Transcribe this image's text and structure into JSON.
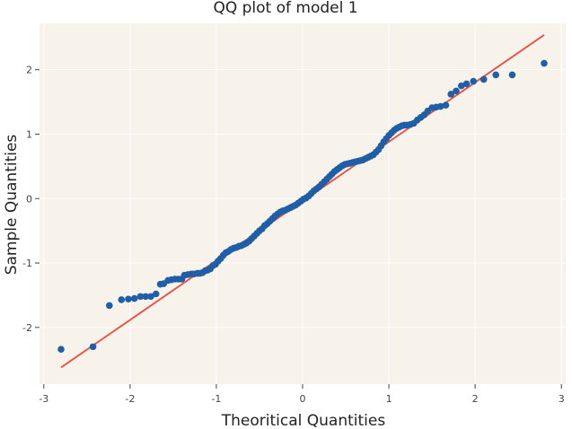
{
  "chart_data": {
    "type": "scatter",
    "title": "QQ plot of model 1",
    "xlabel": "Theoritical Quantities",
    "ylabel": "Sample Quantities",
    "xlim": [
      -3.05,
      3.05
    ],
    "ylim": [
      -2.88,
      2.72
    ],
    "x_ticks": [
      -3,
      -2,
      -1,
      0,
      1,
      2,
      3
    ],
    "y_ticks": [
      -2,
      -1,
      0,
      1,
      2
    ],
    "grid": true,
    "legend": "none",
    "colors": {
      "plot_background": "#f7f2ea",
      "grid": "#ffffff",
      "points": "#1f5fa8",
      "line": "#ef4a40"
    },
    "series": [
      {
        "type": "scatter",
        "points": [
          [
            -2.8,
            -2.34
          ],
          [
            -2.43,
            -2.3
          ],
          [
            -2.24,
            -1.66
          ],
          [
            -2.1,
            -1.57
          ],
          [
            -2.02,
            -1.56
          ],
          [
            -1.95,
            -1.55
          ],
          [
            -1.88,
            -1.52
          ],
          [
            -1.82,
            -1.52
          ],
          [
            -1.76,
            -1.52
          ],
          [
            -1.7,
            -1.48
          ],
          [
            -1.65,
            -1.33
          ],
          [
            -1.61,
            -1.32
          ],
          [
            -1.56,
            -1.27
          ],
          [
            -1.52,
            -1.26
          ],
          [
            -1.48,
            -1.25
          ],
          [
            -1.44,
            -1.25
          ],
          [
            -1.4,
            -1.25
          ],
          [
            -1.37,
            -1.19
          ],
          [
            -1.33,
            -1.18
          ],
          [
            -1.29,
            -1.17
          ],
          [
            -1.26,
            -1.17
          ],
          [
            -1.22,
            -1.16
          ],
          [
            -1.19,
            -1.16
          ],
          [
            -1.16,
            -1.15
          ],
          [
            -1.13,
            -1.12
          ],
          [
            -1.1,
            -1.11
          ],
          [
            -1.07,
            -1.09
          ],
          [
            -1.04,
            -1.04
          ],
          [
            -1.01,
            -1.02
          ],
          [
            -0.98,
            -0.97
          ],
          [
            -0.95,
            -0.93
          ],
          [
            -0.92,
            -0.88
          ],
          [
            -0.89,
            -0.84
          ],
          [
            -0.86,
            -0.82
          ],
          [
            -0.83,
            -0.79
          ],
          [
            -0.8,
            -0.77
          ],
          [
            -0.77,
            -0.76
          ],
          [
            -0.74,
            -0.74
          ],
          [
            -0.71,
            -0.73
          ],
          [
            -0.68,
            -0.71
          ],
          [
            -0.65,
            -0.69
          ],
          [
            -0.62,
            -0.66
          ],
          [
            -0.59,
            -0.62
          ],
          [
            -0.56,
            -0.58
          ],
          [
            -0.53,
            -0.54
          ],
          [
            -0.5,
            -0.5
          ],
          [
            -0.47,
            -0.47
          ],
          [
            -0.44,
            -0.42
          ],
          [
            -0.41,
            -0.39
          ],
          [
            -0.38,
            -0.35
          ],
          [
            -0.35,
            -0.31
          ],
          [
            -0.32,
            -0.27
          ],
          [
            -0.29,
            -0.24
          ],
          [
            -0.26,
            -0.21
          ],
          [
            -0.23,
            -0.19
          ],
          [
            -0.2,
            -0.18
          ],
          [
            -0.17,
            -0.16
          ],
          [
            -0.14,
            -0.14
          ],
          [
            -0.11,
            -0.12
          ],
          [
            -0.08,
            -0.1
          ],
          [
            -0.05,
            -0.07
          ],
          [
            -0.02,
            -0.04
          ],
          [
            0.01,
            -0.01
          ],
          [
            0.04,
            0.01
          ],
          [
            0.07,
            0.04
          ],
          [
            0.1,
            0.08
          ],
          [
            0.13,
            0.12
          ],
          [
            0.16,
            0.15
          ],
          [
            0.19,
            0.18
          ],
          [
            0.22,
            0.22
          ],
          [
            0.25,
            0.26
          ],
          [
            0.28,
            0.3
          ],
          [
            0.31,
            0.34
          ],
          [
            0.34,
            0.38
          ],
          [
            0.37,
            0.42
          ],
          [
            0.4,
            0.45
          ],
          [
            0.43,
            0.48
          ],
          [
            0.46,
            0.51
          ],
          [
            0.49,
            0.53
          ],
          [
            0.52,
            0.54
          ],
          [
            0.55,
            0.55
          ],
          [
            0.58,
            0.56
          ],
          [
            0.61,
            0.57
          ],
          [
            0.64,
            0.58
          ],
          [
            0.67,
            0.59
          ],
          [
            0.7,
            0.6
          ],
          [
            0.73,
            0.62
          ],
          [
            0.76,
            0.64
          ],
          [
            0.79,
            0.66
          ],
          [
            0.82,
            0.68
          ],
          [
            0.85,
            0.72
          ],
          [
            0.88,
            0.76
          ],
          [
            0.91,
            0.82
          ],
          [
            0.94,
            0.88
          ],
          [
            0.97,
            0.93
          ],
          [
            1.0,
            0.98
          ],
          [
            1.03,
            1.02
          ],
          [
            1.06,
            1.06
          ],
          [
            1.09,
            1.09
          ],
          [
            1.12,
            1.11
          ],
          [
            1.15,
            1.13
          ],
          [
            1.18,
            1.14
          ],
          [
            1.21,
            1.14
          ],
          [
            1.25,
            1.15
          ],
          [
            1.29,
            1.17
          ],
          [
            1.33,
            1.22
          ],
          [
            1.37,
            1.26
          ],
          [
            1.41,
            1.3
          ],
          [
            1.45,
            1.36
          ],
          [
            1.5,
            1.41
          ],
          [
            1.55,
            1.42
          ],
          [
            1.6,
            1.43
          ],
          [
            1.66,
            1.45
          ],
          [
            1.72,
            1.62
          ],
          [
            1.78,
            1.67
          ],
          [
            1.84,
            1.75
          ],
          [
            1.9,
            1.78
          ],
          [
            1.98,
            1.82
          ],
          [
            2.1,
            1.85
          ],
          [
            2.24,
            1.92
          ],
          [
            2.43,
            1.92
          ],
          [
            2.8,
            2.1
          ]
        ]
      },
      {
        "type": "line",
        "points": [
          [
            -2.8,
            -2.62
          ],
          [
            2.8,
            2.54
          ]
        ]
      }
    ]
  }
}
